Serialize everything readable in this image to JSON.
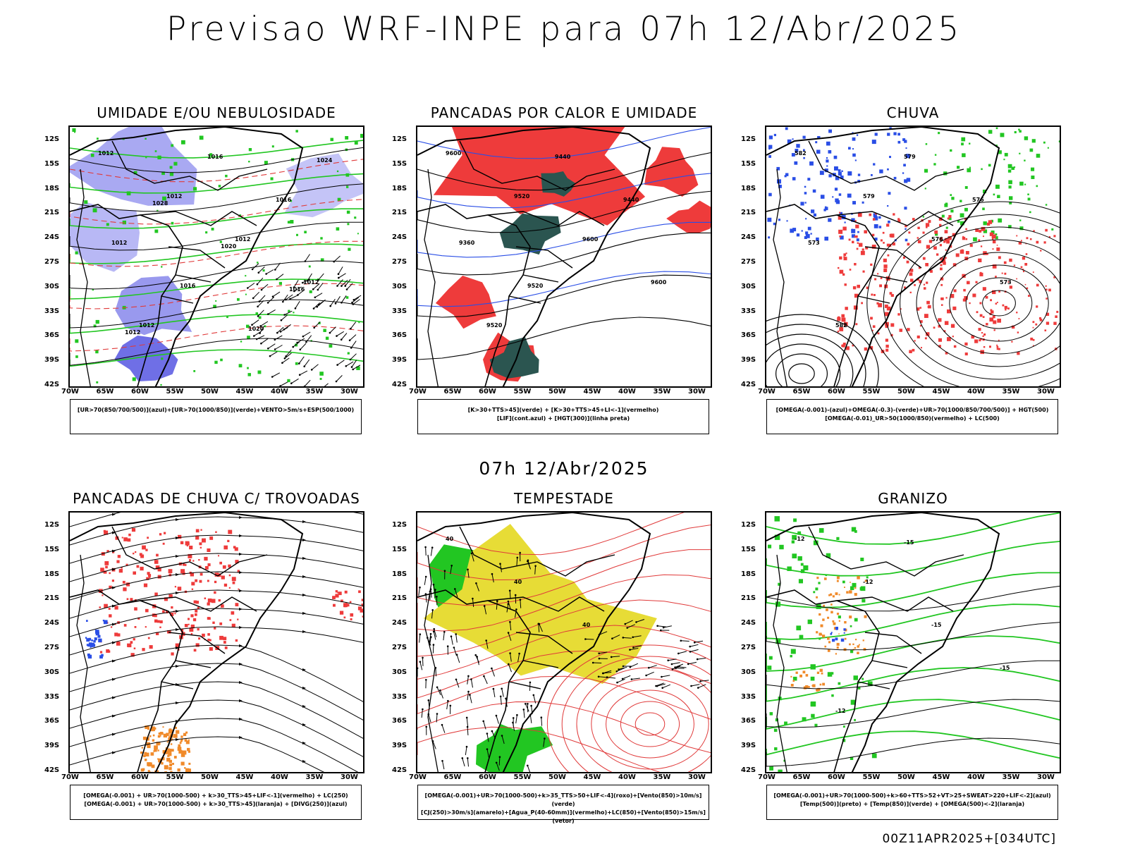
{
  "header": {
    "title": "Previsao WRF-INPE  para 07h 12/Abr/2025",
    "mid_title": "07h 12/Abr/2025",
    "footer": "00Z11APR2025+[034UTC]"
  },
  "axes": {
    "lat_labels": [
      "12S",
      "15S",
      "18S",
      "21S",
      "24S",
      "27S",
      "30S",
      "33S",
      "36S",
      "39S",
      "42S"
    ],
    "lon_labels": [
      "70W",
      "65W",
      "60W",
      "55W",
      "50W",
      "45W",
      "40W",
      "35W",
      "30W"
    ]
  },
  "panels": [
    {
      "title": "UMIDADE E/OU NEBULOSIDADE",
      "legend": [
        "[UR>70(850/700/500)](azul)+[UR>70(1000/850)](verde)+VENTO>5m/s+ESP(500/1000)"
      ],
      "contour_labels": [
        "1012",
        "1012",
        "1012",
        "1012",
        "1012",
        "1016",
        "1016",
        "1012",
        "1016",
        "1020",
        "1024",
        "1028",
        "1020",
        "1016",
        "1012"
      ]
    },
    {
      "title": "PANCADAS POR CALOR E UMIDADE",
      "legend": [
        "[K>30+TTS>45](verde) + [K>30+TTS>45+LI<-1](vermelho)",
        "[LIF](cont.azul) + [HGT(300)](linha preta)"
      ],
      "contour_labels": [
        "9600",
        "9520",
        "9600",
        "9600",
        "9520",
        "9440",
        "9440",
        "9360",
        "9520"
      ]
    },
    {
      "title": "CHUVA",
      "legend": [
        "[OMEGA(-0.001)-(azul)+OMEGA(-0.3)-(verde)+UR>70(1000/850/700/500)] + HGT(500)",
        "[OMEGA(-0.01)_UR>50(1000/850)(vermelho) + LC(500)"
      ],
      "contour_labels": [
        "582",
        "579",
        "576",
        "573",
        "582",
        "579",
        "576",
        "573"
      ]
    },
    {
      "title": "PANCADAS DE CHUVA C/ TROVOADAS",
      "legend": [
        "[OMEGA(-0.001) + UR>70(1000-500) + k>30_TTS>45+LIF<-1](vermelho) + LC(250)",
        "[OMEGA(-0.001) + UR>70(1000-500) + k>30_TTS>45](laranja) + [DIVG(250)](azul)"
      ],
      "contour_labels": []
    },
    {
      "title": "TEMPESTADE",
      "legend": [
        "[OMEGA(-0.001)+UR>70(1000-500)+k>35_TTS>50+LIF<-4](roxo)+[Vento(850)>10m/s](verde)",
        "[CJ(250)>30m/s](amarelo)+[Agua_P(40-60mm)](vermelho)+LC(850)+[Vento(850)>15m/s](vetor)"
      ],
      "contour_labels": [
        "40",
        "40",
        "40"
      ]
    },
    {
      "title": "GRANIZO",
      "legend": [
        "[OMEGA(-0.001)+UR>70(1000-500)+k>60+TTS>52+VT>25+SWEAT>220+LIF<-2](azul)",
        "[Temp(500)](preto) + [Temp(850)](verde) + [OMEGA(500)<-2](laranja)"
      ],
      "contour_labels": [
        "-12",
        "-12",
        "-15",
        "-15",
        "-12",
        "-15"
      ]
    }
  ]
}
